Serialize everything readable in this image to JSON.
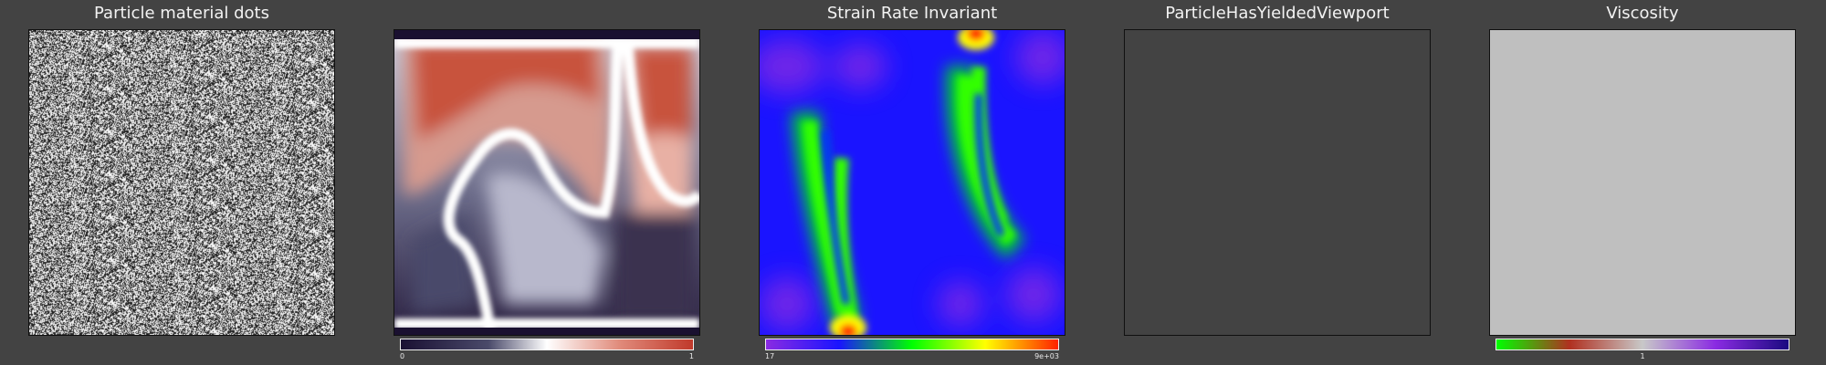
{
  "panels": [
    {
      "title": "Particle material dots"
    },
    {
      "title": "",
      "colourbar": {
        "min": "0",
        "max": "1"
      }
    },
    {
      "title": "Strain Rate Invariant",
      "colourbar": {
        "min": "17",
        "max": "9e+03"
      }
    },
    {
      "title": "ParticleHasYieldedViewport"
    },
    {
      "title": "Viscosity",
      "colourbar": {
        "mid": "1"
      }
    }
  ],
  "colors": {
    "background": "#434343",
    "yielded_viewport": "#434343",
    "viscosity_field": "#bfbfbf",
    "strain_rate_base": "#1a14ff"
  },
  "colourmaps": {
    "temperature": [
      "#1a1033",
      "#4a4a6a",
      "#ffffff",
      "#e08a7a",
      "#c0392b"
    ],
    "strain_rate": [
      "#8a2be2",
      "#1a14ff",
      "#00ff00",
      "#ffff00",
      "#ff2200"
    ],
    "viscosity": [
      "#00ff00",
      "#b03020",
      "#c8c8c8",
      "#8a2be2",
      "#1a0a80"
    ]
  }
}
